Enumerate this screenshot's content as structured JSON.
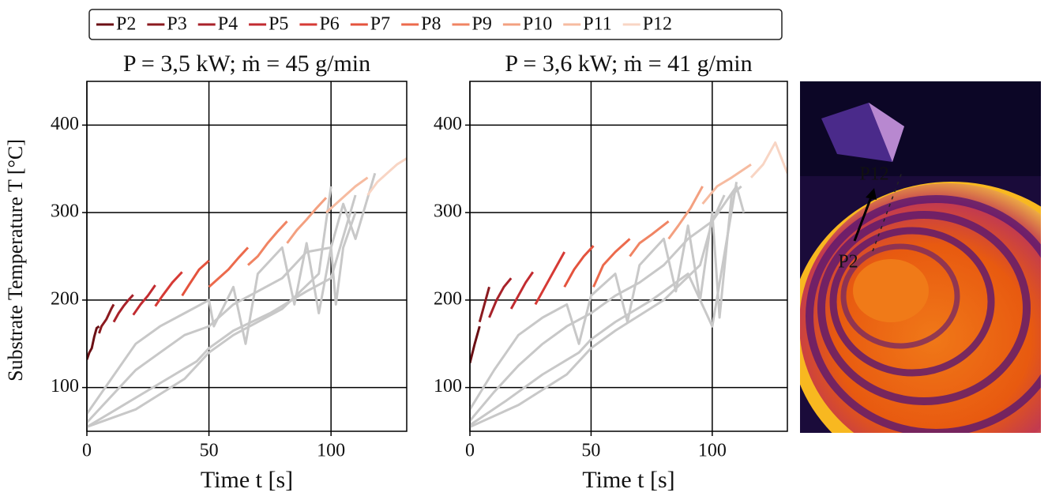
{
  "chart_data": [
    {
      "type": "line",
      "title": "P = 3,5 kW; ṁ = 45 g/min",
      "x_label": "Time t [s]",
      "y_label": "Substrate Temperature T [°C]",
      "xlim": [
        0,
        131
      ],
      "ylim": [
        50,
        450
      ],
      "xticks": [
        0,
        50,
        100
      ],
      "yticks": [
        100,
        200,
        300,
        400
      ],
      "grid": true,
      "series": [
        {
          "color": "#c8c8c8",
          "x": [
            0,
            10,
            20,
            30,
            40,
            50,
            52,
            60,
            65,
            70,
            80,
            85,
            90,
            95,
            100,
            102,
            105,
            110
          ],
          "values": [
            70,
            110,
            150,
            170,
            185,
            200,
            170,
            215,
            150,
            230,
            260,
            195,
            265,
            185,
            260,
            195,
            260,
            300
          ]
        },
        {
          "color": "#c8c8c8",
          "x": [
            0,
            10,
            20,
            30,
            40,
            50,
            60,
            70,
            80,
            90,
            100,
            105,
            110,
            118
          ],
          "values": [
            60,
            90,
            120,
            140,
            160,
            170,
            195,
            210,
            225,
            255,
            260,
            310,
            270,
            345
          ]
        },
        {
          "color": "#c8c8c8",
          "x": [
            0,
            15,
            30,
            45,
            50,
            60,
            75,
            90,
            100,
            110
          ],
          "values": [
            55,
            80,
            105,
            130,
            145,
            165,
            185,
            210,
            225,
            320
          ]
        },
        {
          "color": "#c8c8c8",
          "x": [
            0,
            20,
            40,
            50,
            60,
            80,
            95,
            100
          ],
          "values": [
            55,
            75,
            110,
            140,
            160,
            190,
            230,
            330
          ]
        },
        {
          "name": "P2",
          "color": "#6b0f14",
          "x": [
            0,
            1,
            2,
            3,
            4,
            5
          ],
          "values": [
            132,
            140,
            145,
            158,
            168,
            170
          ]
        },
        {
          "name": "P3",
          "color": "#8b1a1f",
          "x": [
            5,
            6,
            8,
            10,
            11
          ],
          "values": [
            162,
            170,
            178,
            190,
            195
          ]
        },
        {
          "name": "P4",
          "color": "#a8222a",
          "x": [
            11,
            13,
            15,
            17,
            19
          ],
          "values": [
            175,
            185,
            193,
            200,
            206
          ]
        },
        {
          "name": "P5",
          "color": "#c22b30",
          "x": [
            19,
            22,
            25,
            28
          ],
          "values": [
            183,
            195,
            205,
            217
          ]
        },
        {
          "name": "P6",
          "color": "#d63a35",
          "x": [
            28,
            31,
            35,
            39
          ],
          "values": [
            193,
            205,
            220,
            232
          ]
        },
        {
          "name": "P7",
          "color": "#e4533d",
          "x": [
            39,
            42,
            46,
            50
          ],
          "values": [
            205,
            218,
            235,
            245
          ]
        },
        {
          "name": "P8",
          "color": "#ec6a4c",
          "x": [
            50,
            54,
            58,
            62,
            66
          ],
          "values": [
            215,
            225,
            235,
            248,
            260
          ]
        },
        {
          "name": "P9",
          "color": "#f08463",
          "x": [
            66,
            70,
            74,
            78,
            82
          ],
          "values": [
            240,
            250,
            265,
            278,
            290
          ]
        },
        {
          "name": "P10",
          "color": "#f3a080",
          "x": [
            82,
            86,
            90,
            94,
            98
          ],
          "values": [
            265,
            280,
            292,
            305,
            317
          ]
        },
        {
          "name": "P11",
          "color": "#f6bba0",
          "x": [
            98,
            102,
            106,
            110,
            115
          ],
          "values": [
            300,
            310,
            320,
            330,
            340
          ]
        },
        {
          "name": "P12",
          "color": "#f8d5c4",
          "x": [
            115,
            119,
            123,
            127,
            131
          ],
          "values": [
            320,
            335,
            345,
            355,
            362
          ]
        }
      ]
    },
    {
      "type": "line",
      "title": "P = 3,6 kW; ṁ = 41 g/min",
      "x_label": "Time t [s]",
      "xlim": [
        0,
        131
      ],
      "ylim": [
        50,
        450
      ],
      "xticks": [
        0,
        50,
        100
      ],
      "yticks": [
        100,
        200,
        300,
        400
      ],
      "grid": true,
      "series": [
        {
          "color": "#c8c8c8",
          "x": [
            0,
            10,
            20,
            30,
            40,
            45,
            50,
            60,
            65,
            70,
            80,
            85,
            90,
            95,
            100,
            103,
            108,
            112
          ],
          "values": [
            75,
            120,
            160,
            180,
            195,
            150,
            205,
            230,
            175,
            240,
            270,
            210,
            285,
            200,
            300,
            180,
            320,
            330
          ]
        },
        {
          "color": "#c8c8c8",
          "x": [
            0,
            10,
            20,
            30,
            40,
            50,
            60,
            70,
            80,
            90,
            100,
            110,
            113
          ],
          "values": [
            62,
            95,
            125,
            150,
            170,
            185,
            205,
            220,
            240,
            270,
            290,
            330,
            300
          ]
        },
        {
          "color": "#c8c8c8",
          "x": [
            0,
            15,
            30,
            45,
            50,
            60,
            75,
            90,
            100,
            110
          ],
          "values": [
            57,
            85,
            115,
            140,
            155,
            175,
            200,
            230,
            170,
            335
          ]
        },
        {
          "color": "#c8c8c8",
          "x": [
            0,
            20,
            40,
            50,
            60,
            80,
            95,
            100,
            105
          ],
          "values": [
            55,
            80,
            115,
            145,
            165,
            200,
            240,
            290,
            320
          ]
        },
        {
          "name": "P2",
          "color": "#6b0f14",
          "x": [
            0,
            2,
            4
          ],
          "values": [
            128,
            150,
            170
          ]
        },
        {
          "name": "P3",
          "color": "#8b1a1f",
          "x": [
            4,
            6,
            8
          ],
          "values": [
            175,
            195,
            215
          ]
        },
        {
          "name": "P4",
          "color": "#a8222a",
          "x": [
            8,
            11,
            14,
            17
          ],
          "values": [
            180,
            200,
            215,
            225
          ]
        },
        {
          "name": "P5",
          "color": "#c22b30",
          "x": [
            17,
            20,
            23,
            26
          ],
          "values": [
            190,
            205,
            220,
            232
          ]
        },
        {
          "name": "P6",
          "color": "#d63a35",
          "x": [
            27,
            31,
            35,
            39
          ],
          "values": [
            195,
            215,
            235,
            255
          ]
        },
        {
          "name": "P7",
          "color": "#e4533d",
          "x": [
            39,
            43,
            47,
            51
          ],
          "values": [
            215,
            235,
            250,
            262
          ]
        },
        {
          "name": "P8",
          "color": "#ec6a4c",
          "x": [
            51,
            55,
            60,
            66
          ],
          "values": [
            215,
            240,
            255,
            270
          ]
        },
        {
          "name": "P9",
          "color": "#f08463",
          "x": [
            66,
            70,
            75,
            82
          ],
          "values": [
            250,
            265,
            275,
            290
          ]
        },
        {
          "name": "P10",
          "color": "#f3a080",
          "x": [
            82,
            86,
            91,
            96
          ],
          "values": [
            270,
            285,
            305,
            330
          ]
        },
        {
          "name": "P11",
          "color": "#f6bba0",
          "x": [
            96,
            102,
            108,
            116
          ],
          "values": [
            310,
            330,
            340,
            355
          ]
        },
        {
          "name": "P12",
          "color": "#f8d5c4",
          "x": [
            116,
            121,
            126,
            131
          ],
          "values": [
            340,
            355,
            380,
            345
          ]
        }
      ]
    }
  ],
  "thermal_image": {
    "labels": [
      "P12",
      "P2"
    ]
  }
}
